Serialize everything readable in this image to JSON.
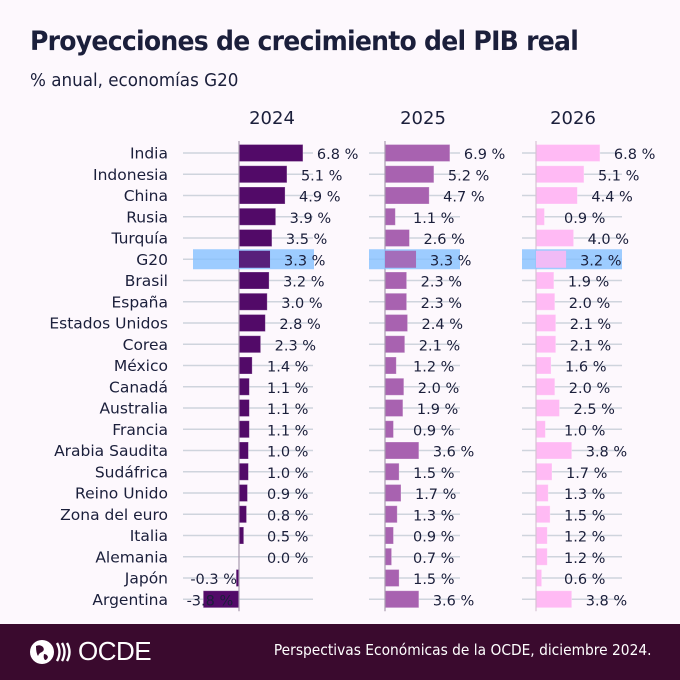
{
  "header": {
    "title": "Proyecciones de crecimiento del PIB real",
    "subtitle": "% anual, economías G20"
  },
  "footer": {
    "logo_text": "OCDE",
    "source": "Perspectivas Económicas de la OCDE, diciembre 2024."
  },
  "colors": {
    "2024": "#520a68",
    "2025": "#a862b0",
    "2026": "#ffbaf4",
    "highlight": "#85c1ff",
    "footer_bg": "#3a0a2e",
    "gridline": "#cfd4dd"
  },
  "chart_data": {
    "type": "bar",
    "orientation": "horizontal",
    "title": "Proyecciones de crecimiento del PIB real",
    "subtitle": "% anual, economías G20",
    "value_suffix": " %",
    "highlighted_category": "G20",
    "categories": [
      "India",
      "Indonesia",
      "China",
      "Rusia",
      "Turquía",
      "G20",
      "Brasil",
      "España",
      "Estados Unidos",
      "Corea",
      "México",
      "Canadá",
      "Australia",
      "Francia",
      "Arabia Saudita",
      "Sudáfrica",
      "Reino Unido",
      "Zona del euro",
      "Italia",
      "Alemania",
      "Japón",
      "Argentina"
    ],
    "series": [
      {
        "name": "2024",
        "values": [
          6.8,
          5.1,
          4.9,
          3.9,
          3.5,
          3.3,
          3.2,
          3.0,
          2.8,
          2.3,
          1.4,
          1.1,
          1.1,
          1.1,
          1.0,
          1.0,
          0.9,
          0.8,
          0.5,
          0.0,
          -0.3,
          -3.8
        ]
      },
      {
        "name": "2025",
        "values": [
          6.9,
          5.2,
          4.7,
          1.1,
          2.6,
          3.3,
          2.3,
          2.3,
          2.4,
          2.1,
          1.2,
          2.0,
          1.9,
          0.9,
          3.6,
          1.5,
          1.7,
          1.3,
          0.9,
          0.7,
          1.5,
          3.6
        ]
      },
      {
        "name": "2026",
        "values": [
          6.8,
          5.1,
          4.4,
          0.9,
          4.0,
          3.2,
          1.9,
          2.0,
          2.1,
          2.1,
          1.6,
          2.0,
          2.5,
          1.0,
          3.8,
          1.7,
          1.3,
          1.5,
          1.2,
          1.2,
          0.6,
          3.8
        ]
      }
    ]
  }
}
